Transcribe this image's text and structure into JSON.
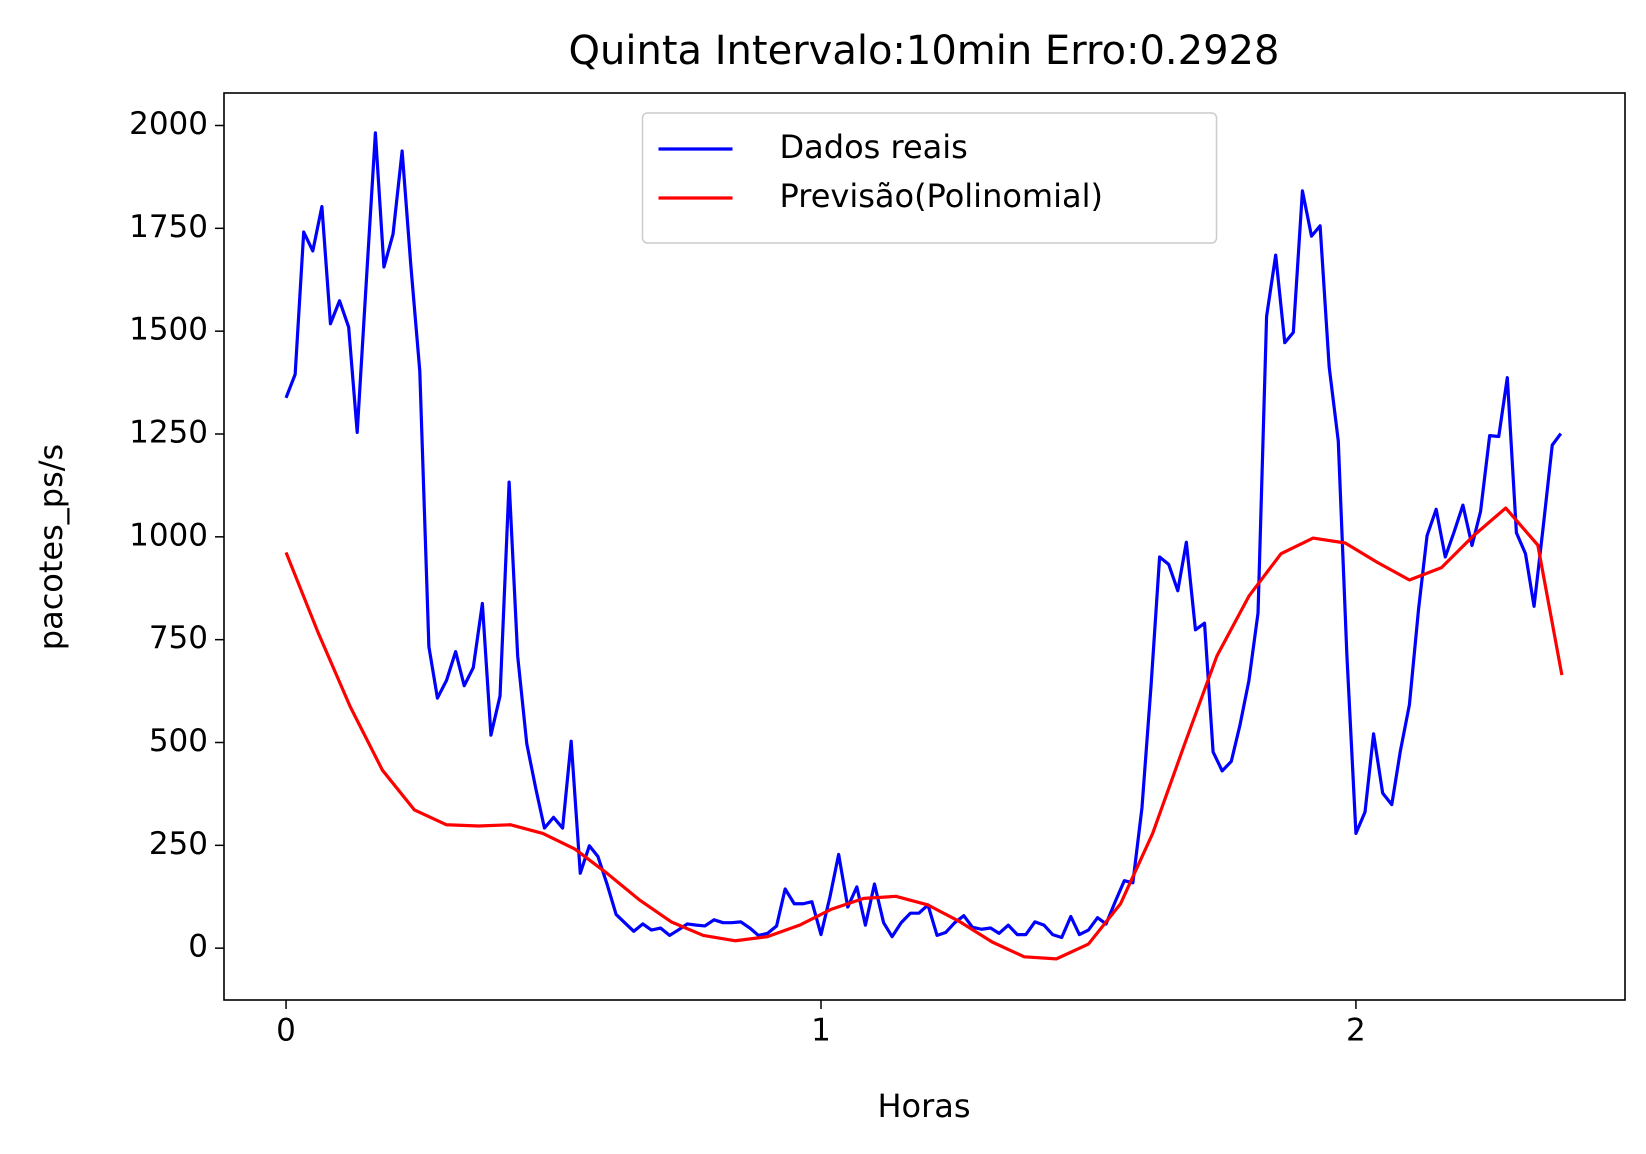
{
  "chart_data": {
    "type": "line",
    "title": "Quinta Intervalo:10min Erro:0.2928",
    "x_label": "Horas",
    "y_label": "pacotes_ps/s",
    "xlim": [
      -0.116,
      2.503
    ],
    "ylim": [
      -126,
      2079
    ],
    "xticks": [
      0,
      1,
      2
    ],
    "yticks": [
      0,
      250,
      500,
      750,
      1000,
      1250,
      1500,
      1750,
      2000
    ],
    "grid": false,
    "legend": "upper center",
    "x": [
      0,
      0.017,
      0.033,
      0.05,
      0.067,
      0.083,
      0.1,
      0.117,
      0.133,
      0.15,
      0.167,
      0.183,
      0.2,
      0.217,
      0.233,
      0.25,
      0.267,
      0.283,
      0.3,
      0.317,
      0.333,
      0.35,
      0.367,
      0.383,
      0.4,
      0.417,
      0.433,
      0.45,
      0.467,
      0.483,
      0.5,
      0.517,
      0.533,
      0.55,
      0.567,
      0.583,
      0.6,
      0.617,
      0.633,
      0.65,
      0.667,
      0.683,
      0.7,
      0.717,
      0.733,
      0.75,
      0.767,
      0.783,
      0.8,
      0.817,
      0.833,
      0.85,
      0.867,
      0.883,
      0.9,
      0.917,
      0.933,
      0.95,
      0.967,
      0.983,
      1,
      1.017,
      1.033,
      1.05,
      1.067,
      1.083,
      1.1,
      1.117,
      1.133,
      1.15,
      1.167,
      1.183,
      1.2,
      1.217,
      1.233,
      1.25,
      1.267,
      1.283,
      1.3,
      1.317,
      1.333,
      1.35,
      1.367,
      1.383,
      1.4,
      1.417,
      1.433,
      1.45,
      1.467,
      1.483,
      1.5,
      1.517,
      1.533,
      1.55,
      1.567,
      1.583,
      1.6,
      1.617,
      1.633,
      1.65,
      1.667,
      1.683,
      1.7,
      1.717,
      1.733,
      1.75,
      1.767,
      1.783,
      1.8,
      1.817,
      1.833,
      1.85,
      1.867,
      1.883,
      1.9,
      1.917,
      1.933,
      1.95,
      1.967,
      1.983,
      2,
      2.017,
      2.033,
      2.05,
      2.067,
      2.083,
      2.1,
      2.117,
      2.133,
      2.15,
      2.167,
      2.183,
      2.2,
      2.217,
      2.233,
      2.25,
      2.267,
      2.283,
      2.3,
      2.317,
      2.333,
      2.35,
      2.367,
      2.383
    ],
    "series": [
      {
        "name": "Dados reais",
        "color": "#0000ff",
        "values": [
          1338,
          1395,
          1741,
          1695,
          1803,
          1518,
          1574,
          1510,
          1254,
          1620,
          1982,
          1656,
          1736,
          1938,
          1664,
          1403,
          733,
          608,
          651,
          721,
          638,
          682,
          838,
          518,
          613,
          1133,
          710,
          497,
          387,
          292,
          318,
          292,
          503,
          182,
          249,
          223,
          156,
          82,
          62,
          41,
          59,
          44,
          49,
          31,
          44,
          59,
          56,
          54,
          69,
          62,
          62,
          64,
          49,
          31,
          36,
          54,
          144,
          108,
          108,
          113,
          33,
          126,
          228,
          100,
          149,
          56,
          156,
          62,
          28,
          62,
          85,
          85,
          105,
          31,
          38,
          62,
          79,
          51,
          46,
          49,
          36,
          56,
          33,
          33,
          64,
          56,
          33,
          26,
          77,
          33,
          44,
          74,
          59,
          113,
          164,
          159,
          341,
          638,
          951,
          933,
          869,
          987,
          774,
          790,
          477,
          431,
          454,
          541,
          651,
          815,
          1536,
          1685,
          1472,
          1497,
          1841,
          1731,
          1756,
          1413,
          1233,
          715,
          279,
          331,
          521,
          377,
          349,
          479,
          592,
          823,
          1003,
          1067,
          951,
          1010,
          1077,
          979,
          1062,
          1246,
          1244,
          1387,
          1010,
          959,
          831,
          1023,
          1223,
          1251
        ]
      },
      {
        "name": "Previsão(Polinomial)",
        "color": "#ff0000",
        "x": [
          0,
          0.06,
          0.12,
          0.18,
          0.24,
          0.3,
          0.36,
          0.42,
          0.48,
          0.54,
          0.6,
          0.66,
          0.72,
          0.78,
          0.84,
          0.9,
          0.96,
          1.02,
          1.08,
          1.14,
          1.2,
          1.26,
          1.32,
          1.38,
          1.44,
          1.5,
          1.56,
          1.62,
          1.68,
          1.74,
          1.8,
          1.86,
          1.92,
          1.98,
          2.04,
          2.1,
          2.16,
          2.22,
          2.28,
          2.34,
          2.385
        ],
        "values": [
          962,
          767,
          587,
          433,
          336,
          300,
          297,
          300,
          279,
          241,
          182,
          118,
          64,
          31,
          18,
          28,
          56,
          95,
          121,
          126,
          105,
          64,
          15,
          -21,
          -26,
          10,
          108,
          279,
          497,
          710,
          856,
          959,
          997,
          985,
          938,
          895,
          925,
          1003,
          1070,
          980,
          664
        ]
      }
    ]
  }
}
